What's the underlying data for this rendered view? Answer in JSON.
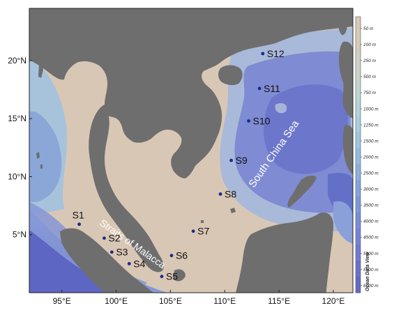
{
  "map": {
    "water_labels": {
      "sea": "South China Sea",
      "strait": "Straits of Malacca"
    },
    "lon_ticks": [
      {
        "value": 95,
        "label": "95°E"
      },
      {
        "value": 100,
        "label": "100°E"
      },
      {
        "value": 105,
        "label": "105°E"
      },
      {
        "value": 110,
        "label": "110°E"
      },
      {
        "value": 115,
        "label": "115°E"
      },
      {
        "value": 120,
        "label": "120°E"
      }
    ],
    "lat_ticks": [
      {
        "value": 5,
        "label": "5°N"
      },
      {
        "value": 10,
        "label": "10°N"
      },
      {
        "value": 15,
        "label": "15°N"
      },
      {
        "value": 20,
        "label": "20°N"
      }
    ],
    "stations": [
      {
        "name": "S1",
        "lon": 96.6,
        "lat": 5.9
      },
      {
        "name": "S2",
        "lon": 98.9,
        "lat": 4.7
      },
      {
        "name": "S3",
        "lon": 99.6,
        "lat": 3.5
      },
      {
        "name": "S4",
        "lon": 101.2,
        "lat": 2.5
      },
      {
        "name": "S5",
        "lon": 104.2,
        "lat": 1.4
      },
      {
        "name": "S6",
        "lon": 105.1,
        "lat": 3.2
      },
      {
        "name": "S7",
        "lon": 107.1,
        "lat": 5.3
      },
      {
        "name": "S8",
        "lon": 109.6,
        "lat": 8.5
      },
      {
        "name": "S9",
        "lon": 110.6,
        "lat": 11.4
      },
      {
        "name": "S10",
        "lon": 112.2,
        "lat": 14.8
      },
      {
        "name": "S11",
        "lon": 113.2,
        "lat": 17.6
      },
      {
        "name": "S12",
        "lon": 113.5,
        "lat": 20.6
      }
    ],
    "colors": {
      "land": "#6e6e6e",
      "shallow": "#d9c7b5",
      "mid": "#a9b9d6",
      "deep": "#7f8bd2",
      "deepest": "#5f6bc6",
      "station": "#1a2a8c"
    }
  },
  "colorbar": {
    "title": "Ocean Data View",
    "levels": [
      {
        "label": "50 m",
        "color": "#dbc9b7"
      },
      {
        "label": "100 m",
        "color": "#d6ccbd"
      },
      {
        "label": "250 m",
        "color": "#cfd1c5"
      },
      {
        "label": "500 m",
        "color": "#c7d4cc"
      },
      {
        "label": "750 m",
        "color": "#bfd6d3"
      },
      {
        "label": "1000 m",
        "color": "#b3d3da"
      },
      {
        "label": "1250 m",
        "color": "#a7cfe0"
      },
      {
        "label": "1500 m",
        "color": "#9dc6e3"
      },
      {
        "label": "2000 m",
        "color": "#94bbe3"
      },
      {
        "label": "2500 m",
        "color": "#8ab0e2"
      },
      {
        "label": "3000 m",
        "color": "#82a4df"
      },
      {
        "label": "3500 m",
        "color": "#7d98dc"
      },
      {
        "label": "4000 m",
        "color": "#788dd8"
      },
      {
        "label": "4500 m",
        "color": "#7583d4"
      },
      {
        "label": "5000 m",
        "color": "#7279cf"
      },
      {
        "label": "5500 m",
        "color": "#6d70c9"
      },
      {
        "label": "6000 m",
        "color": "#6867c2"
      }
    ]
  }
}
